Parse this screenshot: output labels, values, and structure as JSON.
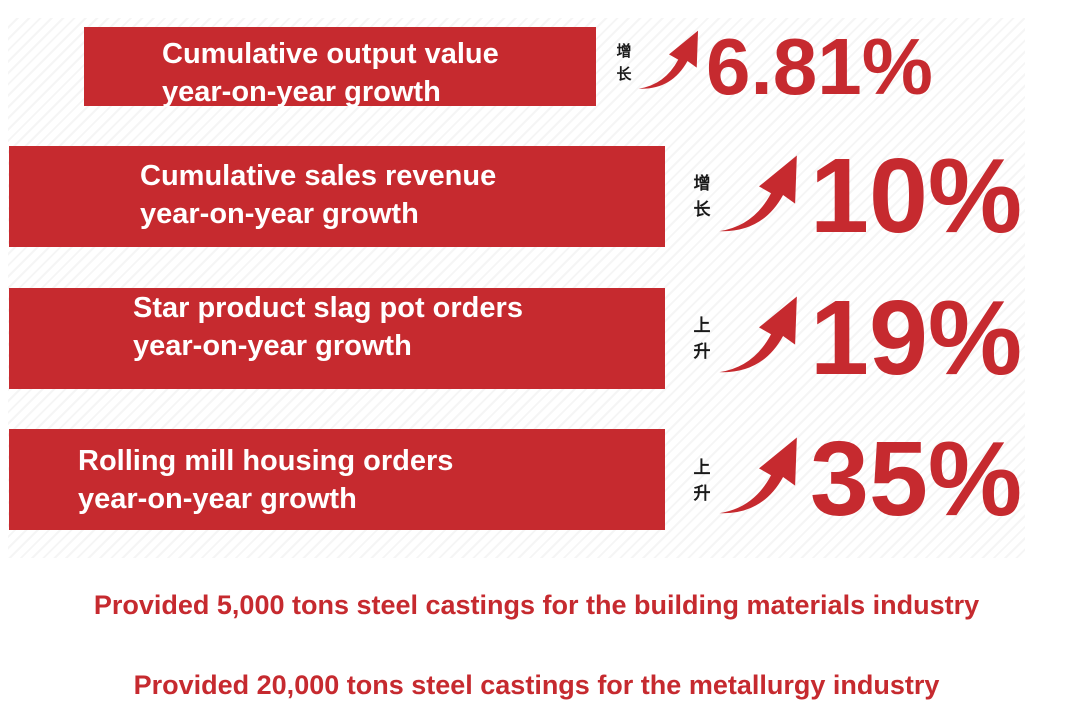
{
  "metrics": [
    {
      "label_line1": "Cumulative output value",
      "label_line2": "year-on-year growth",
      "tag_char1": "增",
      "tag_char2": "长",
      "value": "6.81%"
    },
    {
      "label_line1": "Cumulative sales revenue",
      "label_line2": "year-on-year growth",
      "tag_char1": "增",
      "tag_char2": "长",
      "value": "10%"
    },
    {
      "label_line1": "Star product slag pot orders",
      "label_line2": "year-on-year growth",
      "tag_char1": "上",
      "tag_char2": "升",
      "value": "19%"
    },
    {
      "label_line1": "Rolling mill housing orders",
      "label_line2": "year-on-year growth",
      "tag_char1": "上",
      "tag_char2": "升",
      "value": "35%"
    }
  ],
  "notes": [
    "Provided 5,000 tons steel castings for the building materials industry",
    "Provided 20,000 tons steel castings for the metallurgy industry"
  ],
  "colors": {
    "accent": "#c62a2f",
    "tag_text": "#1a1a1a"
  }
}
